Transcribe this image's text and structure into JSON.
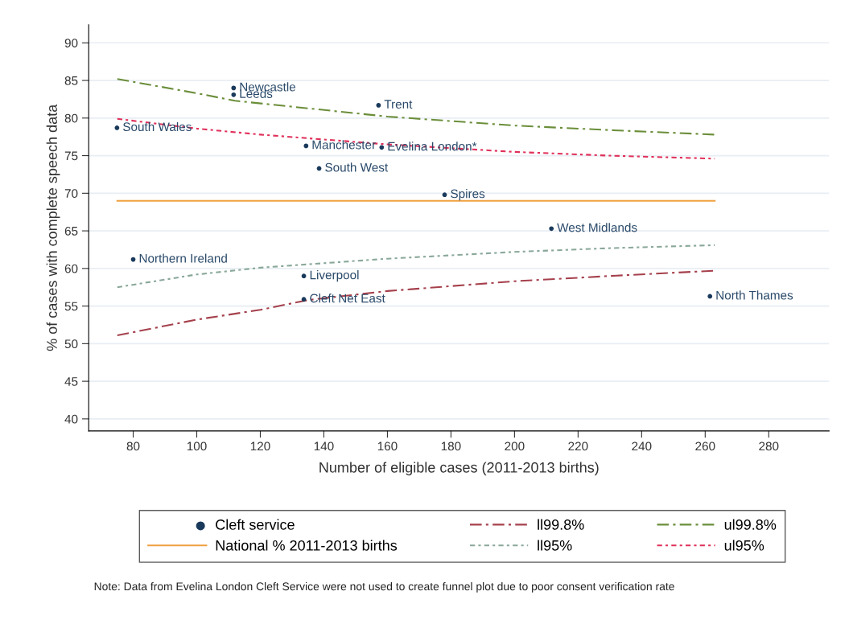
{
  "chart_data": {
    "type": "scatter",
    "xlabel": "Number of eligible cases (2011-2013 births)",
    "ylabel": "% of cases with complete speech data",
    "xlim": [
      66,
      299
    ],
    "ylim": [
      38.4,
      92.4
    ],
    "xticks": [
      80,
      100,
      120,
      140,
      160,
      180,
      200,
      220,
      240,
      260,
      280
    ],
    "yticks": [
      40,
      45,
      50,
      55,
      60,
      65,
      70,
      75,
      80,
      85,
      90
    ],
    "grid": "y",
    "legend": "bottom",
    "series": [
      {
        "name": "Cleft service",
        "color": "#1a3a5c",
        "marker": "circle",
        "x": [
          74.9,
          111.6,
          111.6,
          157.2,
          134.4,
          158.2,
          138.5,
          178,
          211.6,
          80,
          133.7,
          133.7,
          261.5
        ],
        "values": [
          78.7,
          84.0,
          83.1,
          81.7,
          76.3,
          76.1,
          73.3,
          69.8,
          65.3,
          61.2,
          59.0,
          55.9,
          56.3
        ]
      },
      {
        "name": "National % 2011-2013 births",
        "type": "line",
        "color": "#f0a040",
        "line_style": "solid",
        "x": [
          75,
          263
        ],
        "values": [
          69,
          69
        ]
      },
      {
        "name": "ll99.8%",
        "type": "line",
        "color": "#a5404c",
        "line_style": "dashed",
        "x": [
          75,
          100,
          120,
          135,
          160,
          200,
          230,
          263
        ],
        "values": [
          51.1,
          53.2,
          54.5,
          55.8,
          57.0,
          58.3,
          59.0,
          59.7
        ]
      },
      {
        "name": "ll95%",
        "type": "line",
        "color": "#8aa89a",
        "line_style": "dotted",
        "x": [
          75,
          100,
          120,
          160,
          200,
          230,
          263
        ],
        "values": [
          57.5,
          59.2,
          60.1,
          61.3,
          62.2,
          62.7,
          63.1
        ]
      },
      {
        "name": "ul99.8%",
        "type": "line",
        "color": "#6b8e3a",
        "line_style": "dashed",
        "x": [
          75,
          100,
          112,
          160,
          200,
          230,
          263
        ],
        "values": [
          85.2,
          83.3,
          82.3,
          80.2,
          79.0,
          78.4,
          77.8
        ]
      },
      {
        "name": "ul95%",
        "type": "line",
        "color": "#e0305a",
        "line_style": "dotted",
        "x": [
          75,
          100,
          120,
          160,
          200,
          230,
          263
        ],
        "values": [
          79.9,
          78.6,
          77.8,
          76.5,
          75.5,
          75.0,
          74.6
        ]
      }
    ],
    "annotations": [
      {
        "text": "South Wales",
        "x": 74.9,
        "y": 78.7
      },
      {
        "text": "Newcastle",
        "x": 111.6,
        "y": 84.0
      },
      {
        "text": "Leeds",
        "x": 111.6,
        "y": 83.1
      },
      {
        "text": "Trent",
        "x": 157.2,
        "y": 81.7
      },
      {
        "text": "Manchester",
        "x": 134.4,
        "y": 76.3
      },
      {
        "text": "Evelina London*",
        "x": 158.2,
        "y": 76.1
      },
      {
        "text": "South West",
        "x": 138.5,
        "y": 73.3
      },
      {
        "text": "Spires",
        "x": 178,
        "y": 69.8
      },
      {
        "text": "West Midlands",
        "x": 211.6,
        "y": 65.3
      },
      {
        "text": "Northern Ireland",
        "x": 80,
        "y": 61.2
      },
      {
        "text": "Liverpool",
        "x": 133.7,
        "y": 59.0
      },
      {
        "text": "Cleft Net East",
        "x": 133.7,
        "y": 55.9
      },
      {
        "text": "North Thames",
        "x": 261.5,
        "y": 56.3
      },
      "Note: Data from Evelina London Cleft Service were not used to create funnel plot due to poor consent verification rate"
    ]
  }
}
